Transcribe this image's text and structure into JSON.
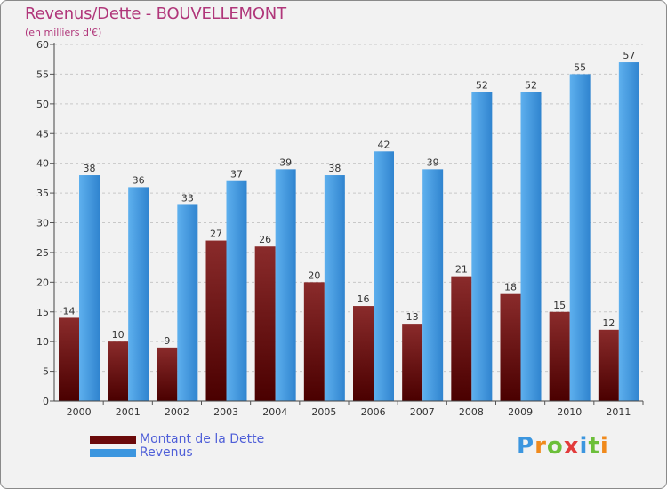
{
  "title": "Revenus/Dette - BOUVELLEMONT",
  "subtitle": "(en milliers d'€)",
  "brand": "Proxiti",
  "colors": {
    "dette": "#6b0a0a",
    "revenus": "#3c96df",
    "title": "#b0367a",
    "legend_text": "#4f5fd8"
  },
  "chart_data": {
    "type": "bar",
    "categories": [
      "2000",
      "2001",
      "2002",
      "2003",
      "2004",
      "2005",
      "2006",
      "2007",
      "2008",
      "2009",
      "2010",
      "2011"
    ],
    "series": [
      {
        "name": "Montant de la Dette",
        "values": [
          14,
          10,
          9,
          27,
          26,
          20,
          16,
          13,
          21,
          18,
          15,
          12
        ]
      },
      {
        "name": "Revenus",
        "values": [
          38,
          36,
          33,
          37,
          39,
          38,
          42,
          39,
          52,
          52,
          55,
          57
        ]
      }
    ],
    "ylim": [
      0,
      60
    ],
    "yticks": [
      0,
      5,
      10,
      15,
      20,
      25,
      30,
      35,
      40,
      45,
      50,
      55,
      60
    ],
    "grid": true,
    "legend": "bottom-left"
  }
}
